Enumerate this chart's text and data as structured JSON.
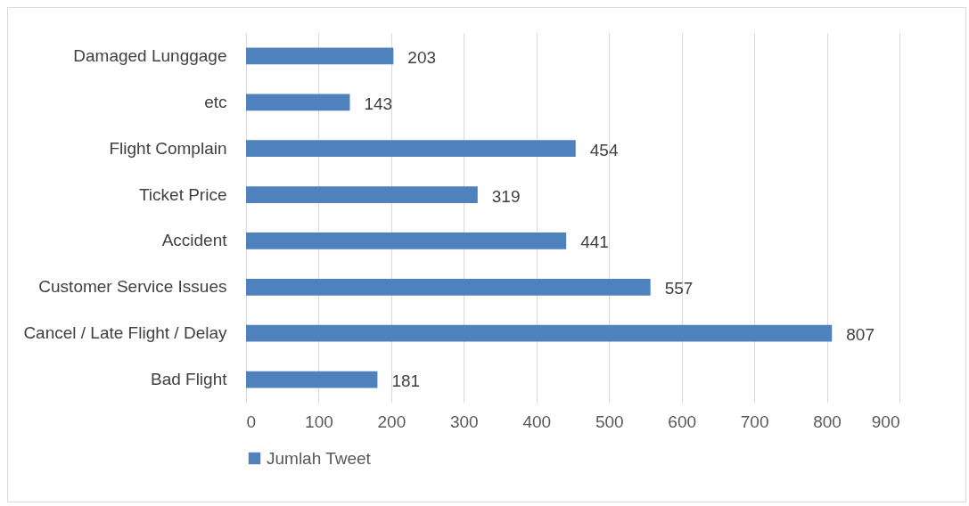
{
  "chart_data": {
    "type": "bar",
    "orientation": "horizontal",
    "categories": [
      "Damaged Lunggage",
      "etc",
      "Flight Complain",
      "Ticket Price",
      "Accident",
      "Customer Service Issues",
      "Cancel / Late Flight / Delay",
      "Bad Flight"
    ],
    "series": [
      {
        "name": "Jumlah Tweet",
        "color": "#4f81bd",
        "values": [
          203,
          143,
          454,
          319,
          441,
          557,
          807,
          181
        ]
      }
    ],
    "xlim": [
      0,
      900
    ],
    "xticks": [
      0,
      100,
      200,
      300,
      400,
      500,
      600,
      700,
      800,
      900
    ],
    "grid": "x",
    "legend": "bottom",
    "data_labels": true
  }
}
